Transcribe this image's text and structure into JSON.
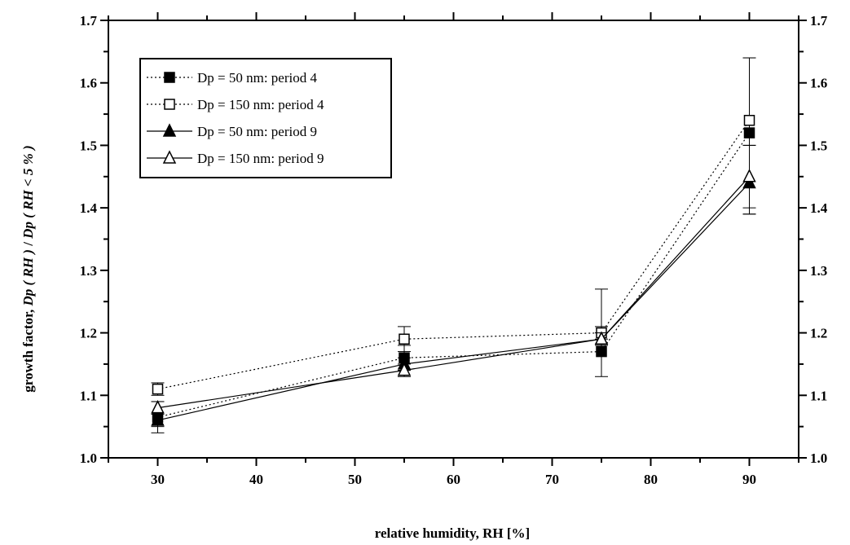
{
  "chart_data": {
    "type": "scatter",
    "xlabel": "relative humidity, RH [%]",
    "ylabel": {
      "prefix": "growth factor, ",
      "italic_part1": "Dp ( RH )",
      "mid": " / ",
      "italic_part2": "Dp ( RH < 5 % )"
    },
    "xlim": [
      25,
      95
    ],
    "ylim": [
      1.0,
      1.7
    ],
    "x_ticks": [
      30,
      40,
      50,
      60,
      70,
      80,
      90
    ],
    "x_tick_labels": [
      "30",
      "40",
      "50",
      "60",
      "70",
      "80",
      "90"
    ],
    "y_ticks": [
      1.0,
      1.1,
      1.2,
      1.3,
      1.4,
      1.5,
      1.6,
      1.7
    ],
    "y_tick_labels": [
      "1.0",
      "1.1",
      "1.2",
      "1.3",
      "1.4",
      "1.5",
      "1.6",
      "1.7"
    ],
    "grid": false,
    "legend_position": "top-left",
    "series": [
      {
        "name": "Dp = 50 nm: period 4",
        "marker": "square-filled",
        "line": "dotted",
        "color": "#000000",
        "x": [
          30,
          55,
          75,
          90
        ],
        "y": [
          1.065,
          1.16,
          1.17,
          1.52
        ],
        "err_low": [
          0.025,
          0.02,
          0.04,
          0.13
        ],
        "err_high": [
          0.025,
          0.02,
          0.04,
          0.12
        ]
      },
      {
        "name": "Dp = 150 nm: period 4",
        "marker": "square-open",
        "line": "dotted",
        "color": "#000000",
        "x": [
          30,
          55,
          75,
          90
        ],
        "y": [
          1.11,
          1.19,
          1.2,
          1.54
        ],
        "err_low": [
          0.01,
          0.02,
          0.01,
          0.04
        ],
        "err_high": [
          0.01,
          0.02,
          0.07,
          0.1
        ]
      },
      {
        "name": "Dp = 50 nm: period 9",
        "marker": "triangle-filled",
        "line": "solid",
        "color": "#000000",
        "x": [
          30,
          55,
          75,
          90
        ],
        "y": [
          1.06,
          1.15,
          1.19,
          1.44
        ],
        "err_low": [
          0.01,
          0.01,
          0.01,
          0.05
        ],
        "err_high": [
          0.01,
          0.01,
          0.01,
          0.06
        ]
      },
      {
        "name": "Dp = 150 nm: period 9",
        "marker": "triangle-open",
        "line": "solid",
        "color": "#000000",
        "x": [
          30,
          55,
          75,
          90
        ],
        "y": [
          1.08,
          1.14,
          1.19,
          1.45
        ],
        "err_low": [
          0.01,
          0.01,
          0.01,
          0.05
        ],
        "err_high": [
          0.01,
          0.01,
          0.01,
          0.05
        ]
      }
    ]
  }
}
